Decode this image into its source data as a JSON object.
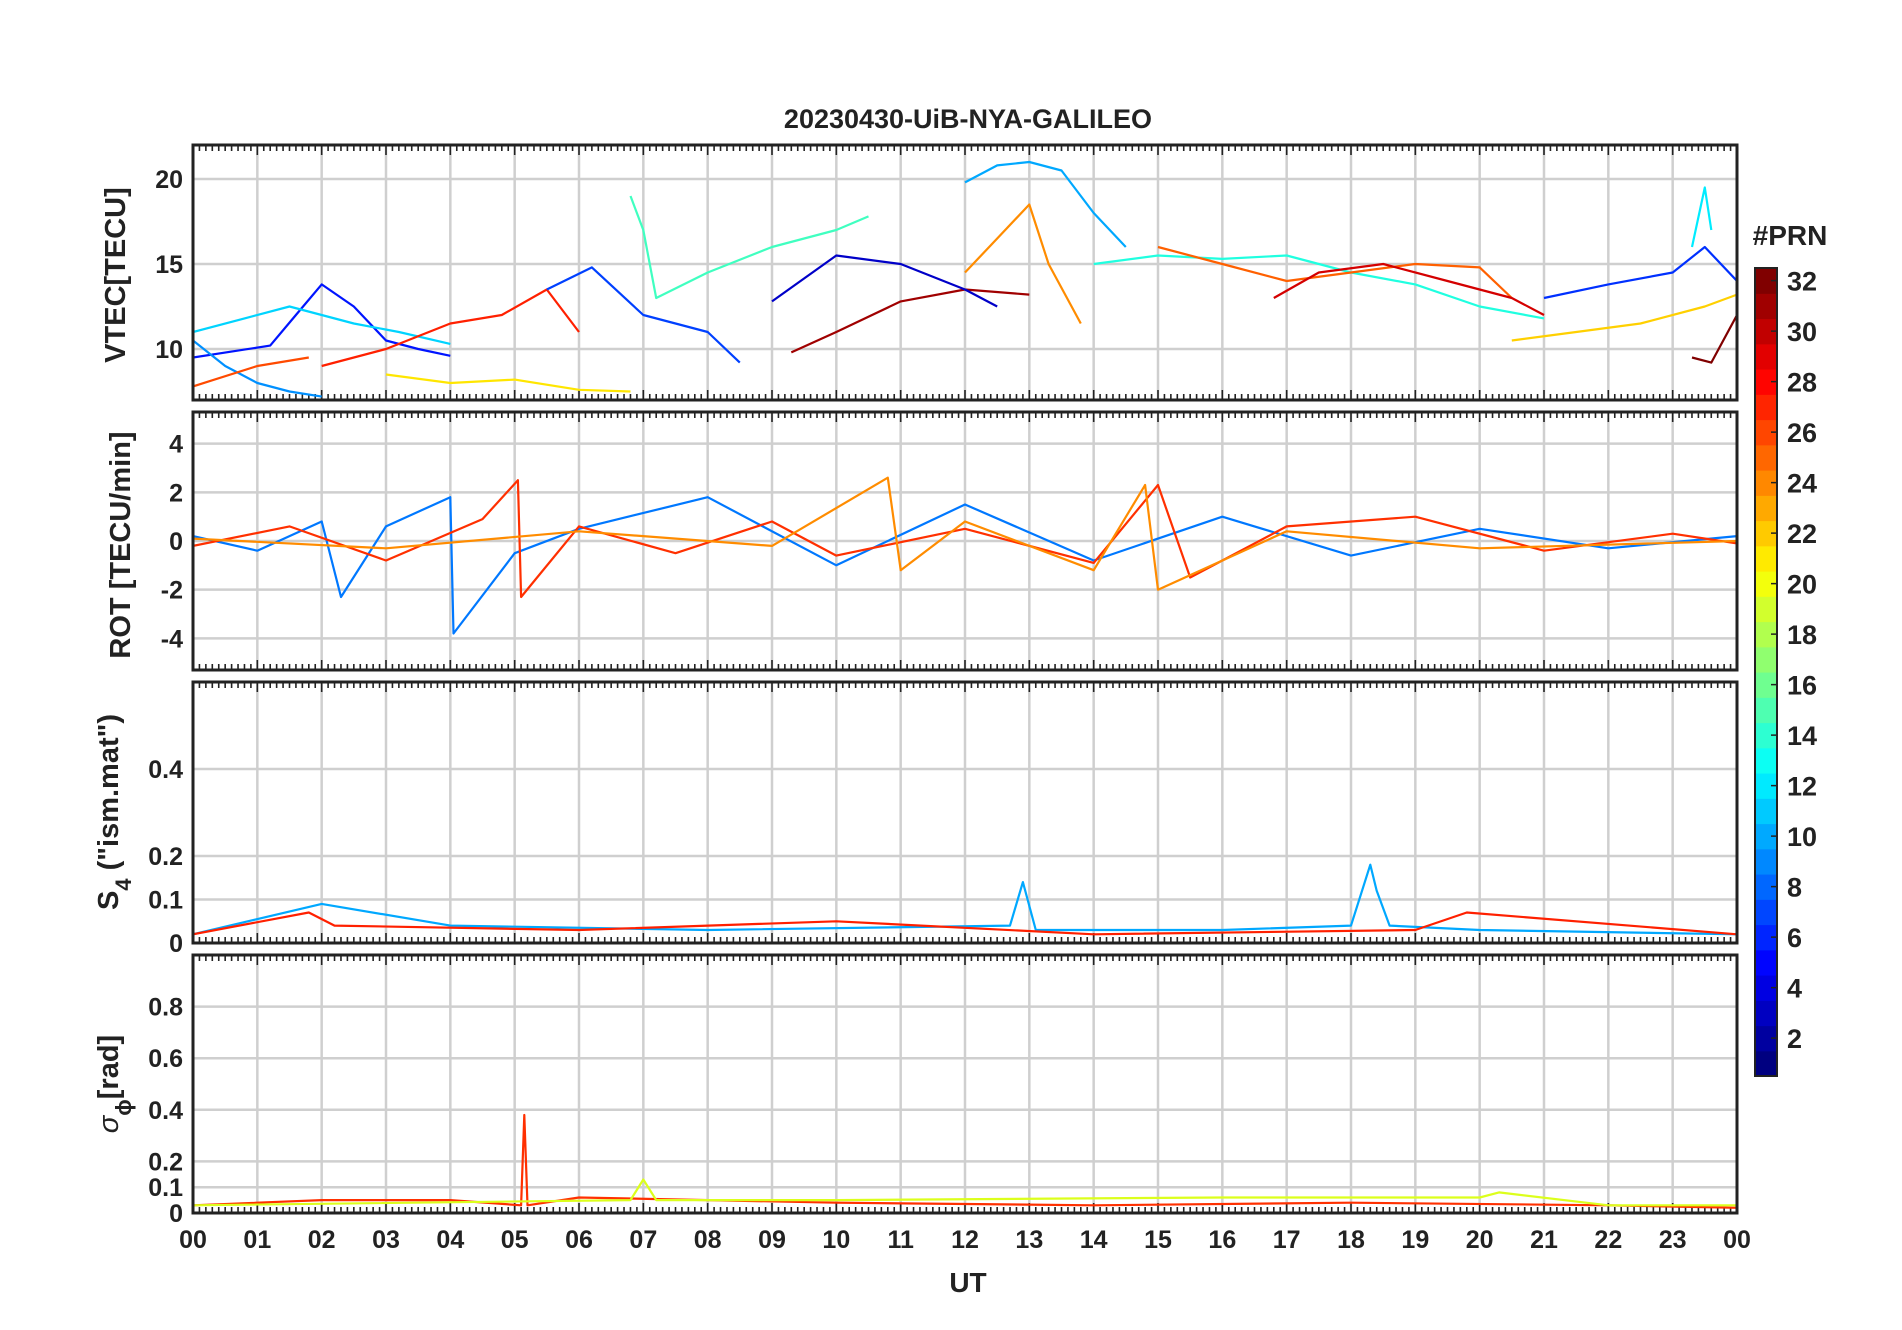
{
  "figure": {
    "title": "20230430-UiB-NYA-GALILEO",
    "xlabel": "UT",
    "x_ticks": [
      "00",
      "01",
      "02",
      "03",
      "04",
      "05",
      "06",
      "07",
      "08",
      "09",
      "10",
      "11",
      "12",
      "13",
      "14",
      "15",
      "16",
      "17",
      "18",
      "19",
      "20",
      "21",
      "22",
      "23",
      "00"
    ]
  },
  "colorbar": {
    "title": "#PRN",
    "colormap": "jet",
    "range": [
      1,
      32
    ],
    "ticks": [
      "2",
      "4",
      "6",
      "8",
      "10",
      "12",
      "14",
      "16",
      "18",
      "20",
      "22",
      "24",
      "26",
      "28",
      "30",
      "32"
    ]
  },
  "chart_data": [
    {
      "type": "line",
      "panel": "vtec",
      "ylabel": "VTEC[TECU]",
      "xlim": [
        0,
        24
      ],
      "ylim": [
        7,
        22
      ],
      "yticks": [
        "10",
        "15",
        "20"
      ],
      "grid": true,
      "series": [
        {
          "prn": 3,
          "color": "#0014ff",
          "x": [
            0.0,
            1.2,
            1.6,
            2.0,
            2.5,
            3.0,
            3.5,
            4.0
          ],
          "y": [
            9.5,
            10.2,
            12.0,
            13.8,
            12.5,
            10.5,
            10.0,
            9.6
          ]
        },
        {
          "prn": 9,
          "color": "#0090ff",
          "x": [
            0.0,
            0.5,
            1.0,
            1.5,
            2.0
          ],
          "y": [
            10.5,
            9.0,
            8.0,
            7.5,
            7.2
          ]
        },
        {
          "prn": 12,
          "color": "#00d4ff",
          "x": [
            0.0,
            0.8,
            1.5,
            2.5,
            3.2,
            4.0
          ],
          "y": [
            11.0,
            11.8,
            12.5,
            11.5,
            11.0,
            10.3
          ]
        },
        {
          "prn": 28,
          "color": "#ff2000",
          "x": [
            2.0,
            3.0,
            4.0,
            4.8,
            5.5,
            6.0
          ],
          "y": [
            9.0,
            10.0,
            11.5,
            12.0,
            13.5,
            11.0
          ]
        },
        {
          "prn": 26,
          "color": "#ff4a00",
          "x": [
            0.0,
            1.0,
            1.8
          ],
          "y": [
            7.8,
            9.0,
            9.5
          ]
        },
        {
          "prn": 20,
          "color": "#ffe600",
          "x": [
            3.0,
            4.0,
            5.0,
            6.0,
            6.8
          ],
          "y": [
            8.5,
            8.0,
            8.2,
            7.6,
            7.5
          ]
        },
        {
          "prn": 6,
          "color": "#0040ff",
          "x": [
            5.5,
            6.2,
            7.0,
            8.0,
            8.5
          ],
          "y": [
            13.5,
            14.8,
            12.0,
            11.0,
            9.2
          ]
        },
        {
          "prn": 15,
          "color": "#40ffc0",
          "x": [
            6.8,
            7.0,
            7.2,
            8.0,
            9.0,
            10.0,
            10.5
          ],
          "y": [
            19.0,
            17.0,
            13.0,
            14.5,
            16.0,
            17.0,
            17.8
          ]
        },
        {
          "prn": 31,
          "color": "#a00000",
          "x": [
            9.3,
            10.0,
            11.0,
            12.0,
            13.0
          ],
          "y": [
            9.8,
            11.0,
            12.8,
            13.5,
            13.2
          ]
        },
        {
          "prn": 10,
          "color": "#00a8ff",
          "x": [
            12.0,
            12.5,
            13.0,
            13.5,
            14.0,
            14.5
          ],
          "y": [
            19.8,
            20.8,
            21.0,
            20.5,
            18.0,
            16.0
          ]
        },
        {
          "prn": 23,
          "color": "#ff8c00",
          "x": [
            12.0,
            12.5,
            13.0,
            13.3,
            13.8
          ],
          "y": [
            14.5,
            16.5,
            18.5,
            15.0,
            11.5
          ]
        },
        {
          "prn": 2,
          "color": "#0000c8",
          "x": [
            9.0,
            10.0,
            11.0,
            12.0,
            12.5
          ],
          "y": [
            12.8,
            15.5,
            15.0,
            13.5,
            12.5
          ]
        },
        {
          "prn": 14,
          "color": "#20ffe0",
          "x": [
            14.0,
            15.0,
            16.0,
            17.0,
            18.0,
            19.0,
            20.0,
            21.0
          ],
          "y": [
            15.0,
            15.5,
            15.3,
            15.5,
            14.5,
            13.8,
            12.5,
            11.8
          ]
        },
        {
          "prn": 25,
          "color": "#ff6000",
          "x": [
            15.0,
            16.0,
            17.0,
            18.0,
            19.0,
            20.0,
            20.5
          ],
          "y": [
            16.0,
            15.0,
            14.0,
            14.5,
            15.0,
            14.8,
            13.0
          ]
        },
        {
          "prn": 29,
          "color": "#d40000",
          "x": [
            16.8,
            17.5,
            18.5,
            19.5,
            20.5,
            21.0
          ],
          "y": [
            13.0,
            14.5,
            15.0,
            14.0,
            13.0,
            12.0
          ]
        },
        {
          "prn": 21,
          "color": "#ffd000",
          "x": [
            20.5,
            21.5,
            22.5,
            23.5,
            24.0
          ],
          "y": [
            10.5,
            11.0,
            11.5,
            12.5,
            13.2
          ]
        },
        {
          "prn": 5,
          "color": "#0030ff",
          "x": [
            21.0,
            22.0,
            23.0,
            23.5,
            24.0
          ],
          "y": [
            13.0,
            13.8,
            14.5,
            16.0,
            14.0
          ]
        },
        {
          "prn": 13,
          "color": "#00ecff",
          "x": [
            23.3,
            23.5,
            23.6
          ],
          "y": [
            16.0,
            19.5,
            17.0
          ]
        },
        {
          "prn": 32,
          "color": "#800000",
          "x": [
            23.3,
            23.6,
            24.0
          ],
          "y": [
            9.5,
            9.2,
            12.0
          ]
        }
      ]
    },
    {
      "type": "line",
      "panel": "rot",
      "ylabel": "ROT [TECU/min]",
      "xlim": [
        0,
        24
      ],
      "ylim": [
        -5.3,
        5.3
      ],
      "yticks": [
        "-4",
        "-2",
        "0",
        "2",
        "4"
      ],
      "grid": true,
      "series": [
        {
          "prn": 8,
          "color": "#0078ff",
          "x": [
            0.0,
            1.0,
            2.0,
            2.3,
            3.0,
            4.0,
            4.05,
            5.0,
            6.0,
            8.0,
            10.0,
            12.0,
            14.0,
            16.0,
            18.0,
            20.0,
            22.0,
            24.0
          ],
          "y": [
            0.2,
            -0.4,
            0.8,
            -2.3,
            0.6,
            1.8,
            -3.8,
            -0.5,
            0.5,
            1.8,
            -1.0,
            1.5,
            -0.8,
            1.0,
            -0.6,
            0.5,
            -0.3,
            0.2
          ]
        },
        {
          "prn": 27,
          "color": "#ff3000",
          "x": [
            0.0,
            1.5,
            3.0,
            4.5,
            5.05,
            5.1,
            6.0,
            7.5,
            9.0,
            10.0,
            12.0,
            14.0,
            15.0,
            15.5,
            17.0,
            19.0,
            21.0,
            23.0,
            24.0
          ],
          "y": [
            -0.2,
            0.6,
            -0.8,
            0.9,
            2.5,
            -2.3,
            0.6,
            -0.5,
            0.8,
            -0.6,
            0.5,
            -0.9,
            2.3,
            -1.5,
            0.6,
            1.0,
            -0.4,
            0.3,
            -0.1
          ]
        },
        {
          "prn": 23,
          "color": "#ff8c00",
          "x": [
            0.0,
            3.0,
            6.0,
            9.0,
            10.8,
            11.0,
            12.0,
            14.0,
            14.8,
            15.0,
            17.0,
            20.0,
            24.0
          ],
          "y": [
            0.1,
            -0.3,
            0.4,
            -0.2,
            2.6,
            -1.2,
            0.8,
            -1.2,
            2.3,
            -2.0,
            0.4,
            -0.3,
            0.0
          ]
        }
      ]
    },
    {
      "type": "line",
      "panel": "s4",
      "ylabel": "S",
      "ylabel_subscript": "4",
      "ylabel_suffix": " (\"ism.mat\")",
      "xlim": [
        0,
        24
      ],
      "ylim": [
        0,
        0.6
      ],
      "yticks": [
        "0",
        "0.1",
        "0.2",
        "0.4"
      ],
      "grid": true,
      "series": [
        {
          "prn": 10,
          "color": "#00a8ff",
          "x": [
            0.0,
            2.0,
            4.0,
            8.0,
            12.7,
            12.9,
            13.1,
            16.0,
            18.0,
            18.3,
            18.4,
            18.6,
            20.0,
            24.0
          ],
          "y": [
            0.02,
            0.09,
            0.04,
            0.03,
            0.04,
            0.14,
            0.03,
            0.03,
            0.04,
            0.18,
            0.12,
            0.04,
            0.03,
            0.02
          ]
        },
        {
          "prn": 28,
          "color": "#ff2000",
          "x": [
            0.0,
            1.8,
            2.2,
            6.0,
            10.0,
            14.0,
            19.0,
            19.8,
            24.0
          ],
          "y": [
            0.02,
            0.07,
            0.04,
            0.03,
            0.05,
            0.02,
            0.03,
            0.07,
            0.02
          ]
        }
      ]
    },
    {
      "type": "line",
      "panel": "sigma_phi",
      "ylabel": "σ",
      "ylabel_subscript": "ϕ",
      "ylabel_suffix": "[rad]",
      "xlim": [
        0,
        24
      ],
      "ylim": [
        0,
        1.0
      ],
      "yticks": [
        "0",
        "0.1",
        "0.2",
        "0.4",
        "0.6",
        "0.8"
      ],
      "grid": true,
      "series": [
        {
          "prn": 27,
          "color": "#ff3000",
          "x": [
            0.0,
            2.0,
            4.0,
            5.1,
            5.15,
            5.2,
            6.0,
            10.0,
            14.0,
            18.0,
            22.0,
            24.0
          ],
          "y": [
            0.03,
            0.05,
            0.05,
            0.03,
            0.38,
            0.03,
            0.06,
            0.04,
            0.03,
            0.04,
            0.03,
            0.02
          ]
        },
        {
          "prn": 19,
          "color": "#dcff1c",
          "x": [
            0.0,
            6.8,
            7.0,
            7.2,
            10.0,
            16.0,
            20.0,
            20.3,
            22.0,
            24.0
          ],
          "y": [
            0.03,
            0.05,
            0.13,
            0.05,
            0.05,
            0.06,
            0.06,
            0.08,
            0.03,
            0.03
          ]
        }
      ]
    }
  ]
}
